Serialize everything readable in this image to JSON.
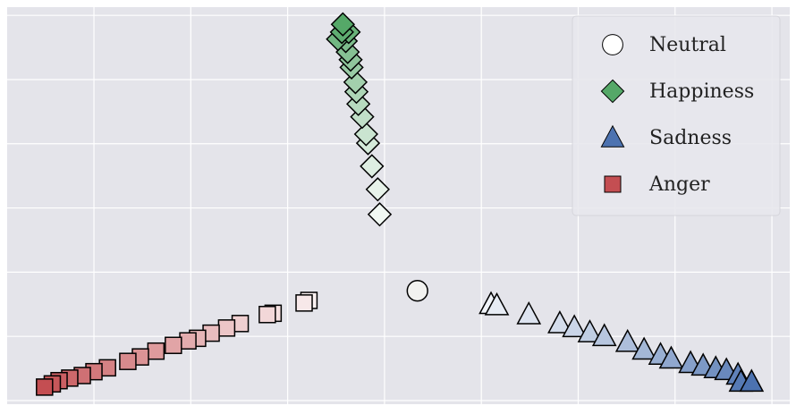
{
  "chart_data": {
    "type": "scatter",
    "xlim": [
      -0.896,
      7.184
    ],
    "ylim": [
      -0.056,
      6.128
    ],
    "xticks": [
      0,
      1,
      2,
      3,
      4,
      5,
      6,
      7
    ],
    "yticks": [
      0,
      1,
      2,
      3,
      4,
      5,
      6
    ],
    "grid": true,
    "legend": "upper right",
    "series": [
      {
        "name": "Neutral",
        "color": "#ffffff",
        "marker": "circle",
        "x": [
          3.34
        ],
        "y": [
          1.71
        ]
      },
      {
        "name": "Happiness",
        "color": "#55a868",
        "marker": "diamond",
        "x": [
          2.95,
          2.93,
          2.87,
          2.83,
          2.81,
          2.77,
          2.73,
          2.71,
          2.7,
          2.66,
          2.65,
          2.62,
          2.6,
          2.52,
          2.63,
          2.56,
          2.57
        ],
        "y": [
          2.9,
          3.29,
          3.65,
          4.01,
          4.15,
          4.42,
          4.62,
          4.81,
          4.96,
          5.19,
          5.31,
          5.43,
          5.6,
          5.63,
          5.74,
          5.74,
          5.86
        ]
      },
      {
        "name": "Sadness",
        "color": "#4c72b0",
        "marker": "triangle",
        "x": [
          4.1,
          4.16,
          4.49,
          4.81,
          4.96,
          5.12,
          5.27,
          5.51,
          5.68,
          5.85,
          5.96,
          6.16,
          6.29,
          6.42,
          6.53,
          6.65,
          6.68,
          6.79
        ],
        "y": [
          1.5,
          1.48,
          1.34,
          1.2,
          1.14,
          1.06,
          1.0,
          0.91,
          0.79,
          0.71,
          0.65,
          0.58,
          0.54,
          0.5,
          0.47,
          0.4,
          0.29,
          0.29
        ]
      },
      {
        "name": "Anger",
        "color": "#c44e52",
        "marker": "square",
        "x": [
          2.22,
          2.17,
          1.85,
          1.79,
          1.51,
          1.37,
          1.21,
          1.07,
          0.97,
          0.82,
          0.64,
          0.48,
          0.35,
          0.14,
          0,
          -0.12,
          -0.25,
          -0.36,
          -0.43,
          -0.51
        ],
        "y": [
          1.56,
          1.52,
          1.36,
          1.34,
          1.2,
          1.13,
          1.05,
          0.97,
          0.93,
          0.86,
          0.77,
          0.68,
          0.61,
          0.51,
          0.45,
          0.39,
          0.35,
          0.31,
          0.26,
          0.21
        ]
      }
    ]
  }
}
